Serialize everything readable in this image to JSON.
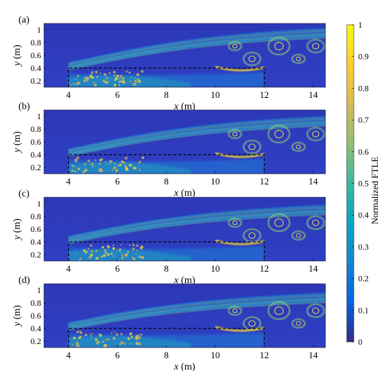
{
  "chart_data": {
    "type": "heatmap",
    "panels": [
      {
        "label": "(a)"
      },
      {
        "label": "(b)"
      },
      {
        "label": "(c)"
      },
      {
        "label": "(d)"
      }
    ],
    "x_axis": {
      "label_prefix": "x",
      "label_unit": " (m)",
      "ticks": [
        4,
        6,
        8,
        10,
        12,
        14
      ],
      "range": [
        3,
        14.5
      ]
    },
    "y_axis": {
      "label_prefix": "y",
      "label_unit": " (m)",
      "ticks": [
        "0.2",
        "0.4",
        "0.6",
        "0.8",
        "1"
      ],
      "range": [
        0.1,
        1.1
      ]
    },
    "region_outline": {
      "x": [
        4,
        12
      ],
      "y_top": 0.4,
      "style": "dashed"
    },
    "colorbar": {
      "label": "Normalized FTLE",
      "ticks": [
        "0",
        "0.1",
        "0.2",
        "0.3",
        "0.4",
        "0.5",
        "0.6",
        "0.7",
        "0.8",
        "0.9",
        "1"
      ],
      "range": [
        0,
        1
      ],
      "colormap": "parula",
      "colors": [
        "#352a87",
        "#0363e1",
        "#1485d4",
        "#06a7c6",
        "#38b99e",
        "#92bf73",
        "#d9ba56",
        "#fcce2e",
        "#f9fb0e"
      ]
    }
  }
}
